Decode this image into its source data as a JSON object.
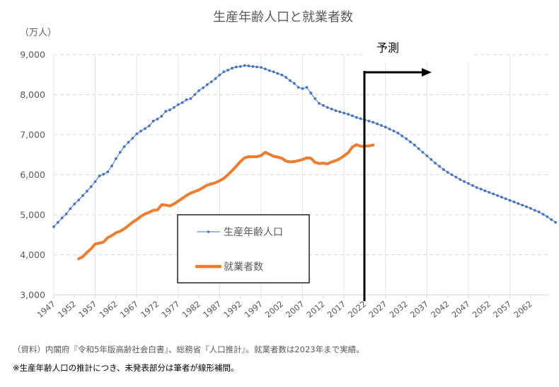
{
  "chart_data": {
    "type": "line",
    "title": "生産年齢人口と就業者数",
    "ylabel": "（万人）",
    "xlabel": "",
    "ylim": [
      3000,
      9000
    ],
    "xlim": [
      1947,
      2065
    ],
    "yticks": [
      3000,
      4000,
      5000,
      6000,
      7000,
      8000,
      9000
    ],
    "ytick_labels": [
      "3,000",
      "4,000",
      "5,000",
      "6,000",
      "7,000",
      "8,000",
      "9,000"
    ],
    "xtick_labels": [
      "1947",
      "1952",
      "1957",
      "1962",
      "1967",
      "1972",
      "1977",
      "1982",
      "1987",
      "1992",
      "1997",
      "2002",
      "2007",
      "2012",
      "2017",
      "2022",
      "2027",
      "2032",
      "2037",
      "2042",
      "2047",
      "2052",
      "2057",
      "2062"
    ],
    "grid": {
      "horizontal": "dashed",
      "vertical": "solid-every-10-years"
    },
    "legend": {
      "placement": "center-left",
      "entries": [
        "生産年齢人口",
        "就業者数"
      ]
    },
    "annotations": {
      "forecast_label": "予測",
      "forecast_start_year": 2022.5
    },
    "colors": {
      "series_0": "#4472C4",
      "series_1": "#ED7D31",
      "annotation": "#000000",
      "grid": "#D9D9D9",
      "text": "#595959"
    },
    "series": [
      {
        "name": "生産年齢人口",
        "style": "line-with-markers",
        "x_start": 1947,
        "values": [
          4700,
          4810,
          4920,
          5020,
          5150,
          5270,
          5370,
          5480,
          5590,
          5700,
          5830,
          5970,
          6010,
          6070,
          6220,
          6400,
          6560,
          6700,
          6810,
          6910,
          7020,
          7090,
          7150,
          7220,
          7340,
          7390,
          7460,
          7580,
          7620,
          7680,
          7750,
          7800,
          7870,
          7900,
          8000,
          8100,
          8170,
          8250,
          8320,
          8400,
          8490,
          8570,
          8610,
          8660,
          8690,
          8700,
          8726,
          8716,
          8700,
          8690,
          8680,
          8640,
          8600,
          8570,
          8530,
          8490,
          8430,
          8350,
          8280,
          8180,
          8150,
          8180,
          8040,
          7900,
          7780,
          7730,
          7680,
          7640,
          7600,
          7570,
          7540,
          7510,
          7470,
          7430,
          7400,
          7370,
          7340,
          7310,
          7270,
          7230,
          7190,
          7140,
          7090,
          7040,
          6970,
          6900,
          6820,
          6740,
          6650,
          6560,
          6470,
          6380,
          6290,
          6210,
          6130,
          6060,
          6000,
          5940,
          5880,
          5830,
          5780,
          5730,
          5680,
          5640,
          5600,
          5560,
          5520,
          5480,
          5440,
          5400,
          5360,
          5320,
          5280,
          5240,
          5200,
          5160,
          5110,
          5070,
          5010,
          4950,
          4880,
          4810
        ]
      },
      {
        "name": "就業者数",
        "style": "thick-line",
        "x_start": 1953,
        "values": [
          3900,
          3950,
          4060,
          4150,
          4270,
          4290,
          4320,
          4430,
          4480,
          4550,
          4590,
          4650,
          4730,
          4810,
          4880,
          4960,
          5020,
          5060,
          5110,
          5120,
          5250,
          5240,
          5220,
          5270,
          5340,
          5410,
          5480,
          5540,
          5580,
          5620,
          5680,
          5740,
          5770,
          5800,
          5850,
          5910,
          6000,
          6100,
          6210,
          6330,
          6420,
          6450,
          6450,
          6450,
          6480,
          6560,
          6510,
          6460,
          6440,
          6410,
          6340,
          6320,
          6330,
          6350,
          6380,
          6420,
          6410,
          6310,
          6280,
          6290,
          6270,
          6320,
          6350,
          6400,
          6470,
          6550,
          6690,
          6750,
          6710,
          6710,
          6720,
          6740
        ]
      }
    ]
  },
  "notes": {
    "source": "（資料）内閣府『令和5年版高齢社会白書』、総務省『人口推計』。就業者数は2023年まで実績。",
    "remark": "※生産年齢人口の推計につき、未発表部分は筆者が線形補間。"
  }
}
